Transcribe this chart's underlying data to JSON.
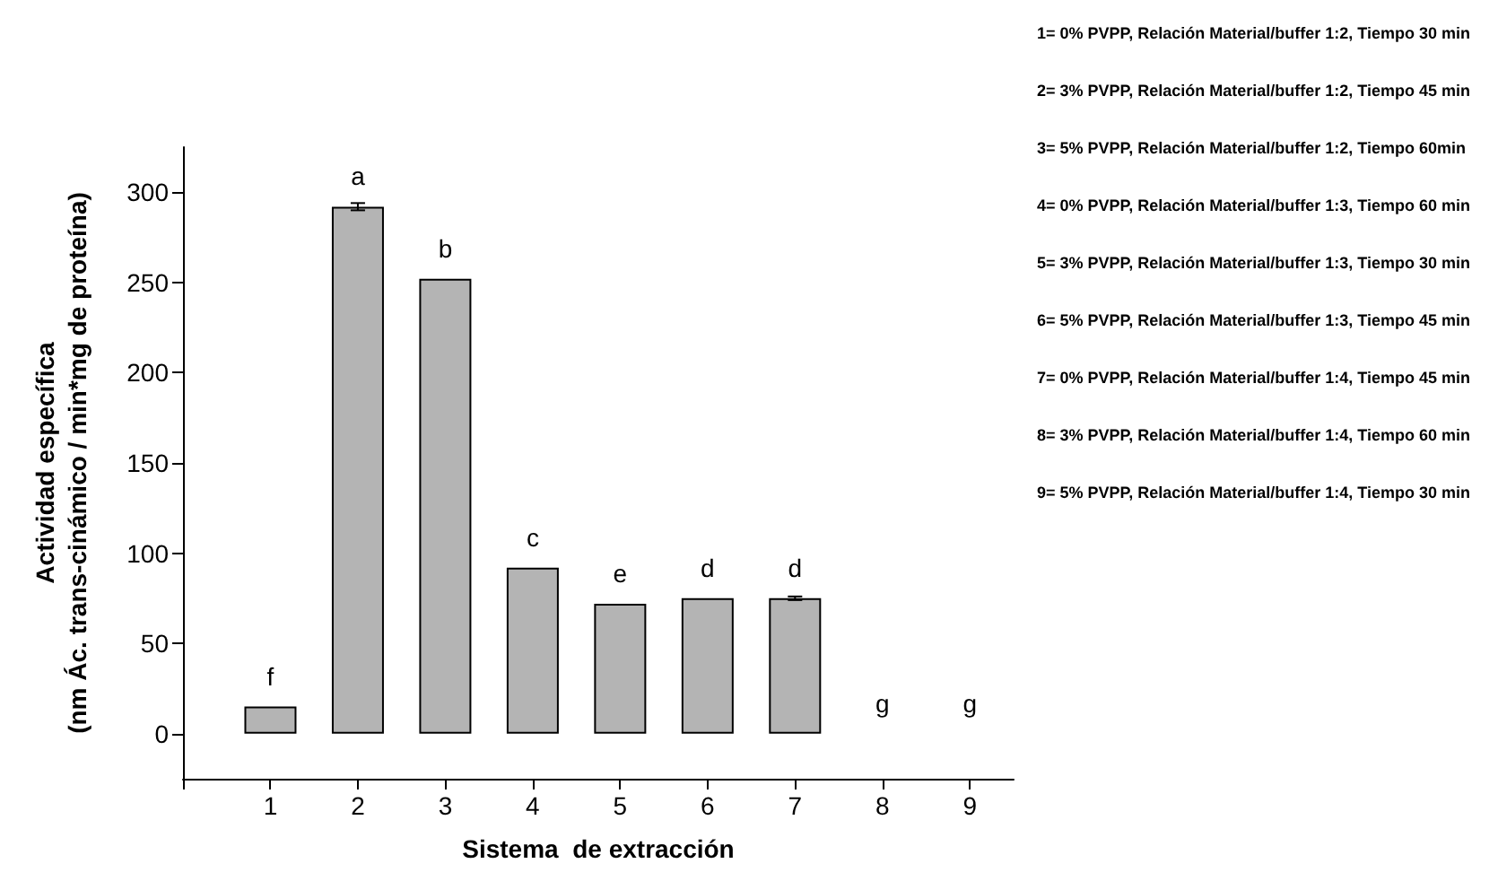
{
  "chart_data": {
    "type": "bar",
    "xlabel": "Sistema  de extracción",
    "ylabel": "Actividad específica\n(nm Ác. trans-cinámico / min*mg de proteína)",
    "x": [
      1,
      2,
      3,
      4,
      5,
      6,
      7,
      8,
      9
    ],
    "values": [
      15,
      292,
      252,
      92,
      72,
      75,
      75,
      0,
      0
    ],
    "errors": [
      null,
      2,
      null,
      null,
      null,
      null,
      1,
      null,
      null
    ],
    "value_labels": [
      "f",
      "a",
      "b",
      "c",
      "e",
      "d",
      "d",
      "g",
      "g"
    ],
    "color": "#b4b4b4",
    "xlim": [
      0,
      9.5
    ],
    "xticks": [
      {
        "value": 0,
        "label": null
      },
      1,
      2,
      3,
      4,
      5,
      6,
      7,
      8,
      9
    ],
    "ylim": [
      -25,
      325
    ],
    "yticks": [
      0,
      50,
      100,
      150,
      200,
      250,
      300
    ],
    "grid": false,
    "annotations": [
      "1= 0% PVPP, Relación Material/buffer 1:2, Tiempo 30 min",
      "2= 3% PVPP, Relación Material/buffer 1:2, Tiempo 45 min",
      "3= 5% PVPP, Relación Material/buffer 1:2, Tiempo 60min",
      "4= 0% PVPP, Relación Material/buffer 1:3, Tiempo 60 min",
      "5= 3% PVPP, Relación Material/buffer 1:3, Tiempo 30 min",
      "6= 5% PVPP, Relación Material/buffer 1:3, Tiempo 45 min",
      "7= 0% PVPP, Relación Material/buffer 1:4, Tiempo 45 min",
      "8= 3% PVPP, Relación Material/buffer 1:4, Tiempo 60 min",
      "9= 5% PVPP, Relación Material/buffer 1:4, Tiempo 30 min"
    ]
  }
}
